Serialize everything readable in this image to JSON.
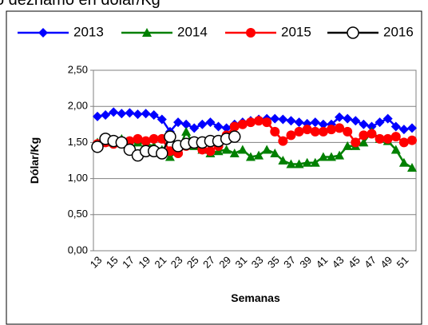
{
  "chart_data": {
    "type": "line",
    "title": "o deznamo en dólar/Kg",
    "x_label": "Semanas",
    "y_label": "Dólar/Kg",
    "categories": [
      "13",
      null,
      "15",
      null,
      "17",
      null,
      "19",
      null,
      "21",
      null,
      "23",
      null,
      "25",
      null,
      "27",
      null,
      "29",
      null,
      "31",
      null,
      "33",
      null,
      "35",
      null,
      "37",
      null,
      "39",
      null,
      "41",
      null,
      "43",
      null,
      "45",
      null,
      "47",
      null,
      "49",
      null,
      "51",
      null
    ],
    "ylim": [
      0,
      2.5
    ],
    "yticks": [
      {
        "value": 0,
        "label": "0,00"
      },
      {
        "value": 0.5,
        "label": "0,50"
      },
      {
        "value": 1,
        "label": "1,00"
      },
      {
        "value": 1.5,
        "label": "1,50"
      },
      {
        "value": 2,
        "label": "2,00"
      },
      {
        "value": 2.5,
        "label": "2,50"
      }
    ],
    "grid": true,
    "legend": "top",
    "series": [
      {
        "name": "2013",
        "color": "#0000ff",
        "marker": "diamond",
        "values": [
          1.86,
          1.88,
          1.92,
          1.9,
          1.91,
          1.89,
          1.9,
          1.88,
          1.82,
          1.65,
          1.78,
          1.75,
          1.7,
          1.75,
          1.78,
          1.72,
          1.7,
          1.75,
          1.78,
          1.8,
          1.82,
          1.83,
          1.83,
          1.82,
          1.8,
          1.78,
          1.76,
          1.78,
          1.75,
          1.75,
          1.85,
          1.83,
          1.8,
          1.75,
          1.72,
          1.78,
          1.83,
          1.72,
          1.68,
          1.7
        ]
      },
      {
        "name": "2014",
        "color": "#008000",
        "marker": "triangle",
        "values": [
          1.5,
          1.5,
          1.52,
          1.55,
          1.5,
          1.5,
          1.48,
          1.45,
          1.4,
          1.3,
          1.38,
          1.65,
          1.45,
          1.4,
          1.35,
          1.38,
          1.4,
          1.35,
          1.4,
          1.3,
          1.32,
          1.4,
          1.35,
          1.25,
          1.2,
          1.2,
          1.22,
          1.22,
          1.3,
          1.3,
          1.32,
          1.45,
          1.45,
          1.5,
          1.65,
          1.55,
          1.52,
          1.4,
          1.22,
          1.15
        ]
      },
      {
        "name": "2015",
        "color": "#ff0000",
        "marker": "circle",
        "values": [
          1.48,
          1.5,
          1.48,
          1.5,
          1.52,
          1.55,
          1.52,
          1.55,
          1.55,
          1.38,
          1.35,
          1.45,
          1.48,
          1.4,
          1.38,
          1.45,
          1.6,
          1.72,
          1.75,
          1.78,
          1.8,
          1.78,
          1.65,
          1.52,
          1.6,
          1.65,
          1.68,
          1.65,
          1.65,
          1.68,
          1.7,
          1.65,
          1.5,
          1.6,
          1.62,
          1.55,
          1.55,
          1.58,
          1.5,
          1.53
        ]
      },
      {
        "name": "2016",
        "color": "#000000",
        "marker": "open-circle",
        "values": [
          1.44,
          1.55,
          1.52,
          1.5,
          1.4,
          1.32,
          1.38,
          1.38,
          1.35,
          1.58,
          1.45,
          1.48,
          1.5,
          1.5,
          1.52,
          1.52,
          1.55,
          1.58,
          null,
          null,
          null,
          null,
          null,
          null,
          null,
          null,
          null,
          null,
          null,
          null,
          null,
          null,
          null,
          null,
          null,
          null,
          null,
          null,
          null,
          null
        ]
      }
    ]
  }
}
